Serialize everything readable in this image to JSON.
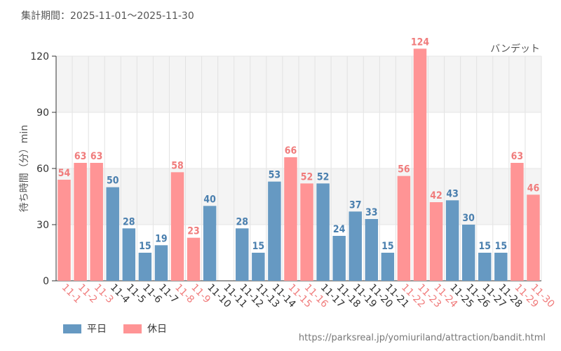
{
  "header": {
    "period_text": "集計期間：2025-11-01～2025-11-30"
  },
  "footer": {
    "url": "https://parksreal.jp/yomiuriland/attraction/bandit.html"
  },
  "legend": {
    "weekday_label": "平日",
    "holiday_label": "休日"
  },
  "colors": {
    "weekday": "#6699C2",
    "holiday": "#FF9495",
    "weekday_text": "#4A7FAE",
    "holiday_text": "#F07C7C"
  },
  "chart_data": {
    "type": "bar",
    "title": "",
    "series_label": "バンデット",
    "ylabel": "待ち時間（分）min",
    "xlabel": "",
    "ylim": [
      0,
      120
    ],
    "yticks": [
      0,
      30,
      60,
      90,
      120
    ],
    "categories": [
      "11-1",
      "11-2",
      "11-3",
      "11-4",
      "11-5",
      "11-6",
      "11-7",
      "11-8",
      "11-9",
      "11-10",
      "11-11",
      "11-12",
      "11-13",
      "11-14",
      "11-15",
      "11-16",
      "11-17",
      "11-18",
      "11-19",
      "11-20",
      "11-21",
      "11-22",
      "11-23",
      "11-24",
      "11-25",
      "11-26",
      "11-27",
      "11-28",
      "11-29",
      "11-30"
    ],
    "values": [
      54,
      63,
      63,
      50,
      28,
      15,
      19,
      58,
      23,
      40,
      null,
      28,
      15,
      53,
      66,
      52,
      52,
      24,
      37,
      33,
      15,
      56,
      124,
      42,
      43,
      30,
      15,
      15,
      63,
      46
    ],
    "day_type": [
      "holiday",
      "holiday",
      "holiday",
      "weekday",
      "weekday",
      "weekday",
      "weekday",
      "holiday",
      "holiday",
      "weekday",
      "weekday",
      "weekday",
      "weekday",
      "weekday",
      "holiday",
      "holiday",
      "weekday",
      "weekday",
      "weekday",
      "weekday",
      "weekday",
      "holiday",
      "holiday",
      "holiday",
      "weekday",
      "weekday",
      "weekday",
      "weekday",
      "holiday",
      "holiday"
    ]
  }
}
